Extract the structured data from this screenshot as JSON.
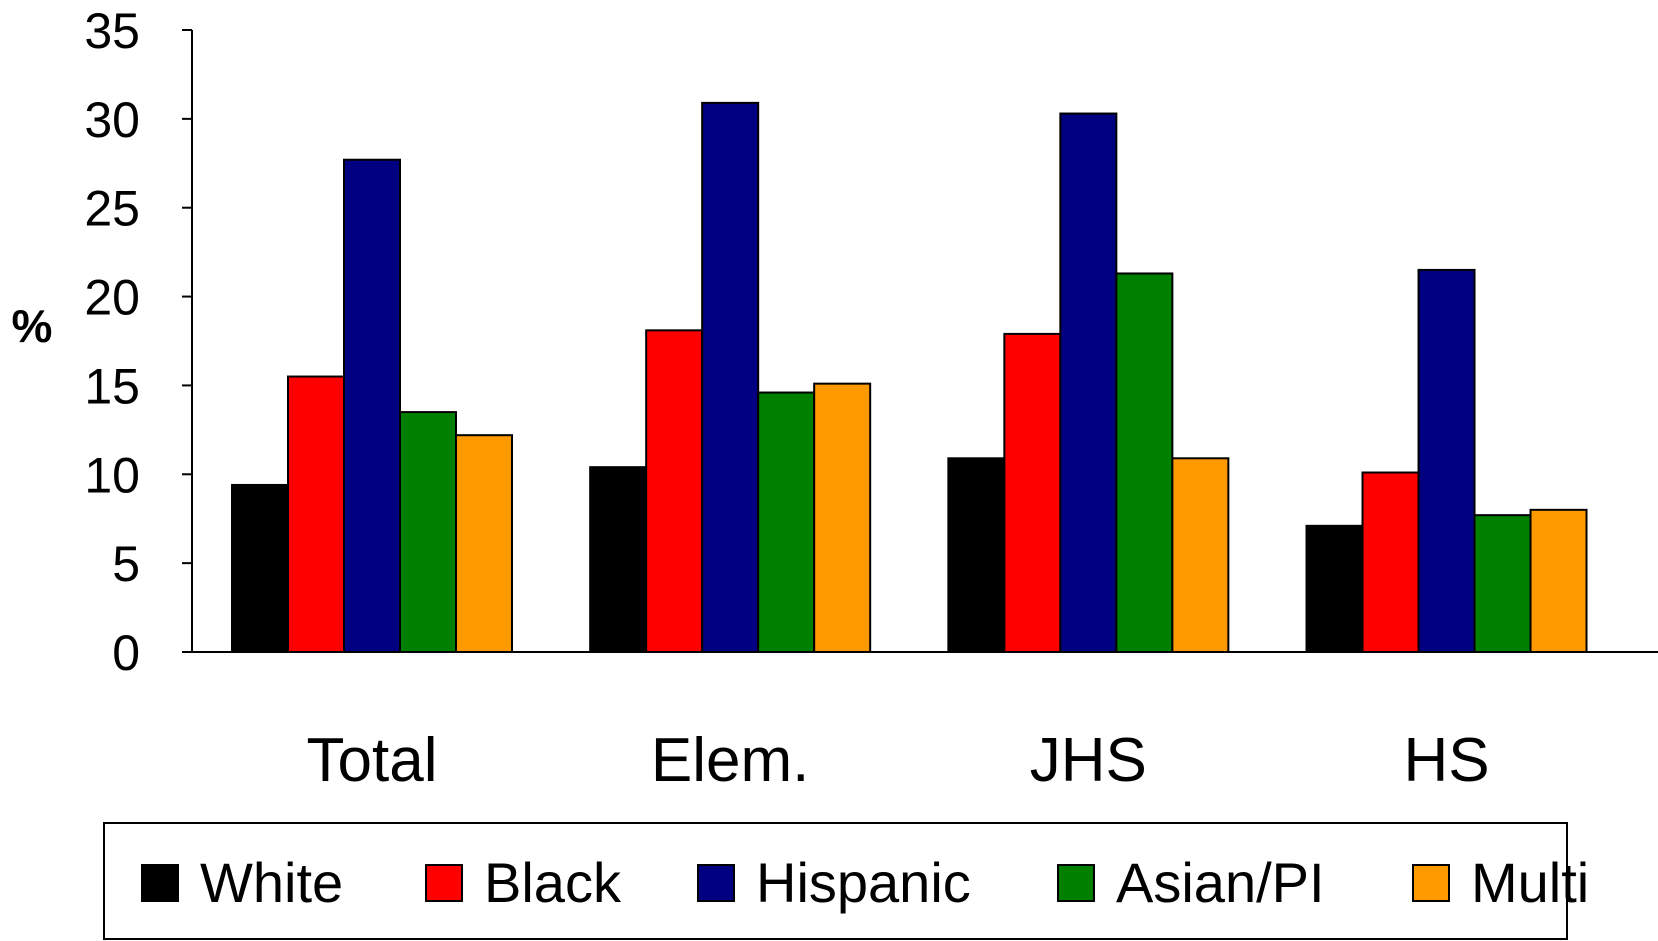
{
  "chart_data": {
    "type": "bar",
    "categories": [
      "Total",
      "Elem.",
      "JHS",
      "HS"
    ],
    "series": [
      {
        "name": "White",
        "color": "#000000",
        "values": [
          9.4,
          10.4,
          10.9,
          7.1
        ]
      },
      {
        "name": "Black",
        "color": "#FF0000",
        "values": [
          15.5,
          18.1,
          17.9,
          10.1
        ]
      },
      {
        "name": "Hispanic",
        "color": "#000080",
        "values": [
          27.7,
          30.9,
          30.3,
          21.5
        ]
      },
      {
        "name": "Asian/PI",
        "color": "#008000",
        "values": [
          13.5,
          14.6,
          21.3,
          7.7
        ]
      },
      {
        "name": "Multi",
        "color": "#FF9900",
        "values": [
          12.2,
          15.1,
          10.9,
          8.0
        ]
      }
    ],
    "ylabel": "%",
    "xlabel": "",
    "title": "",
    "ylim": [
      0,
      35
    ],
    "yticks": [
      0,
      5,
      10,
      15,
      20,
      25,
      30,
      35
    ],
    "grid": false,
    "legend_position": "bottom"
  }
}
